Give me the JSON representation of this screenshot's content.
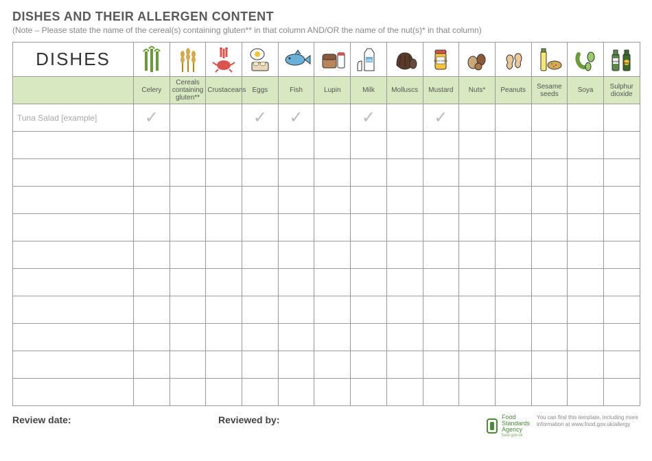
{
  "title": "DISHES AND THEIR ALLERGEN CONTENT",
  "note": "(Note – Please state the name of the cereal(s) containing gluten** in that column AND/OR the name of the nut(s)* in that column)",
  "dishes_header": "DISHES",
  "allergens": [
    {
      "key": "celery",
      "label": "Celery"
    },
    {
      "key": "cereals",
      "label": "Cereals containing gluten**"
    },
    {
      "key": "crustaceans",
      "label": "Crustaceans"
    },
    {
      "key": "eggs",
      "label": "Eggs"
    },
    {
      "key": "fish",
      "label": "Fish"
    },
    {
      "key": "lupin",
      "label": "Lupin"
    },
    {
      "key": "milk",
      "label": "Milk"
    },
    {
      "key": "molluscs",
      "label": "Molluscs"
    },
    {
      "key": "mustard",
      "label": "Mustard"
    },
    {
      "key": "nuts",
      "label": "Nuts*"
    },
    {
      "key": "peanuts",
      "label": "Peanuts"
    },
    {
      "key": "sesame",
      "label": "Sesame seeds"
    },
    {
      "key": "soya",
      "label": "Soya"
    },
    {
      "key": "sulphur",
      "label": "Sulphur dioxide"
    }
  ],
  "rows": [
    {
      "dish": "Tuna Salad [example]",
      "ticks": {
        "celery": true,
        "eggs": true,
        "fish": true,
        "milk": true,
        "mustard": true
      }
    },
    {
      "dish": "",
      "ticks": {}
    },
    {
      "dish": "",
      "ticks": {}
    },
    {
      "dish": "",
      "ticks": {}
    },
    {
      "dish": "",
      "ticks": {}
    },
    {
      "dish": "",
      "ticks": {}
    },
    {
      "dish": "",
      "ticks": {}
    },
    {
      "dish": "",
      "ticks": {}
    },
    {
      "dish": "",
      "ticks": {}
    },
    {
      "dish": "",
      "ticks": {}
    },
    {
      "dish": "",
      "ticks": {}
    }
  ],
  "tick_glyph": "✓",
  "footer": {
    "review_date": "Review date:",
    "reviewed_by": "Reviewed by:",
    "fsa_line1": "Food",
    "fsa_line2": "Standards",
    "fsa_line3": "Agency",
    "fsa_tag": "food.gov.uk",
    "note": "You can find this template, including more information at www.food.gov.uk/allergy"
  },
  "colors": {
    "header_green": "#d8e8c0",
    "border": "#999999",
    "tick": "#bbbbbb",
    "text": "#5a5a5a"
  },
  "icons": {
    "celery": "celery",
    "cereals": "wheat",
    "crustaceans": "crab",
    "eggs": "eggs",
    "fish": "fish",
    "lupin": "bread",
    "milk": "milk",
    "molluscs": "shell",
    "mustard": "jar",
    "nuts": "nuts",
    "peanuts": "peanuts",
    "sesame": "bottle",
    "soya": "beans",
    "sulphur": "wine"
  }
}
